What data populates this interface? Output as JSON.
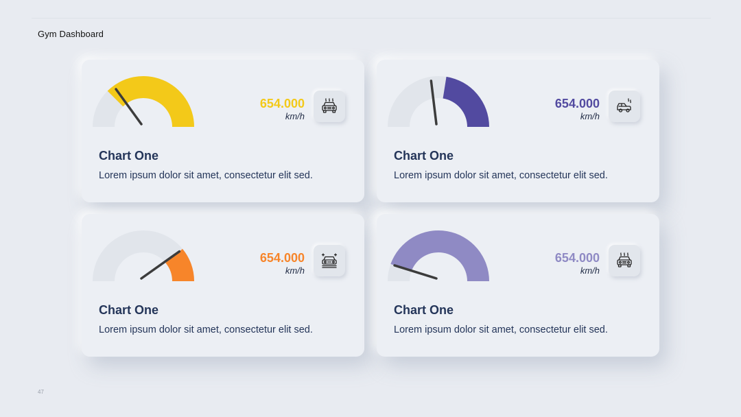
{
  "page": {
    "title": "Gym Dashboard",
    "page_number": "47"
  },
  "cards": [
    {
      "title": "Chart One",
      "description": "Lorem ipsum dolor sit amet, consectetur elit sed.",
      "value": "654.000",
      "unit": "km/h",
      "gauge_fraction": 0.75,
      "needle_fraction": 0.3,
      "color": "#f3c919",
      "icon": "car-front-overheat-icon"
    },
    {
      "title": "Chart One",
      "description": "Lorem ipsum dolor sit amet, consectetur elit sed.",
      "value": "654.000",
      "unit": "km/h",
      "gauge_fraction": 0.45,
      "needle_fraction": 0.45,
      "color": "#524aa0",
      "icon": "car-side-smoke-icon"
    },
    {
      "title": "Chart One",
      "description": "Lorem ipsum dolor sit amet, consectetur elit sed.",
      "value": "654.000",
      "unit": "km/h",
      "gauge_fraction": 0.22,
      "needle_fraction": 0.78,
      "color": "#f7852a",
      "icon": "car-front-sparkle-icon"
    },
    {
      "title": "Chart One",
      "description": "Lorem ipsum dolor sit amet, consectetur elit sed.",
      "value": "654.000",
      "unit": "km/h",
      "gauge_fraction": 0.89,
      "needle_fraction": 0.11,
      "color": "#8f8ac4",
      "icon": "car-front-overheat-icon"
    }
  ],
  "colors": {
    "track": "#e1e5eb",
    "needle": "#3c3c3c",
    "text": "#243559",
    "background": "#e8ebf1"
  }
}
